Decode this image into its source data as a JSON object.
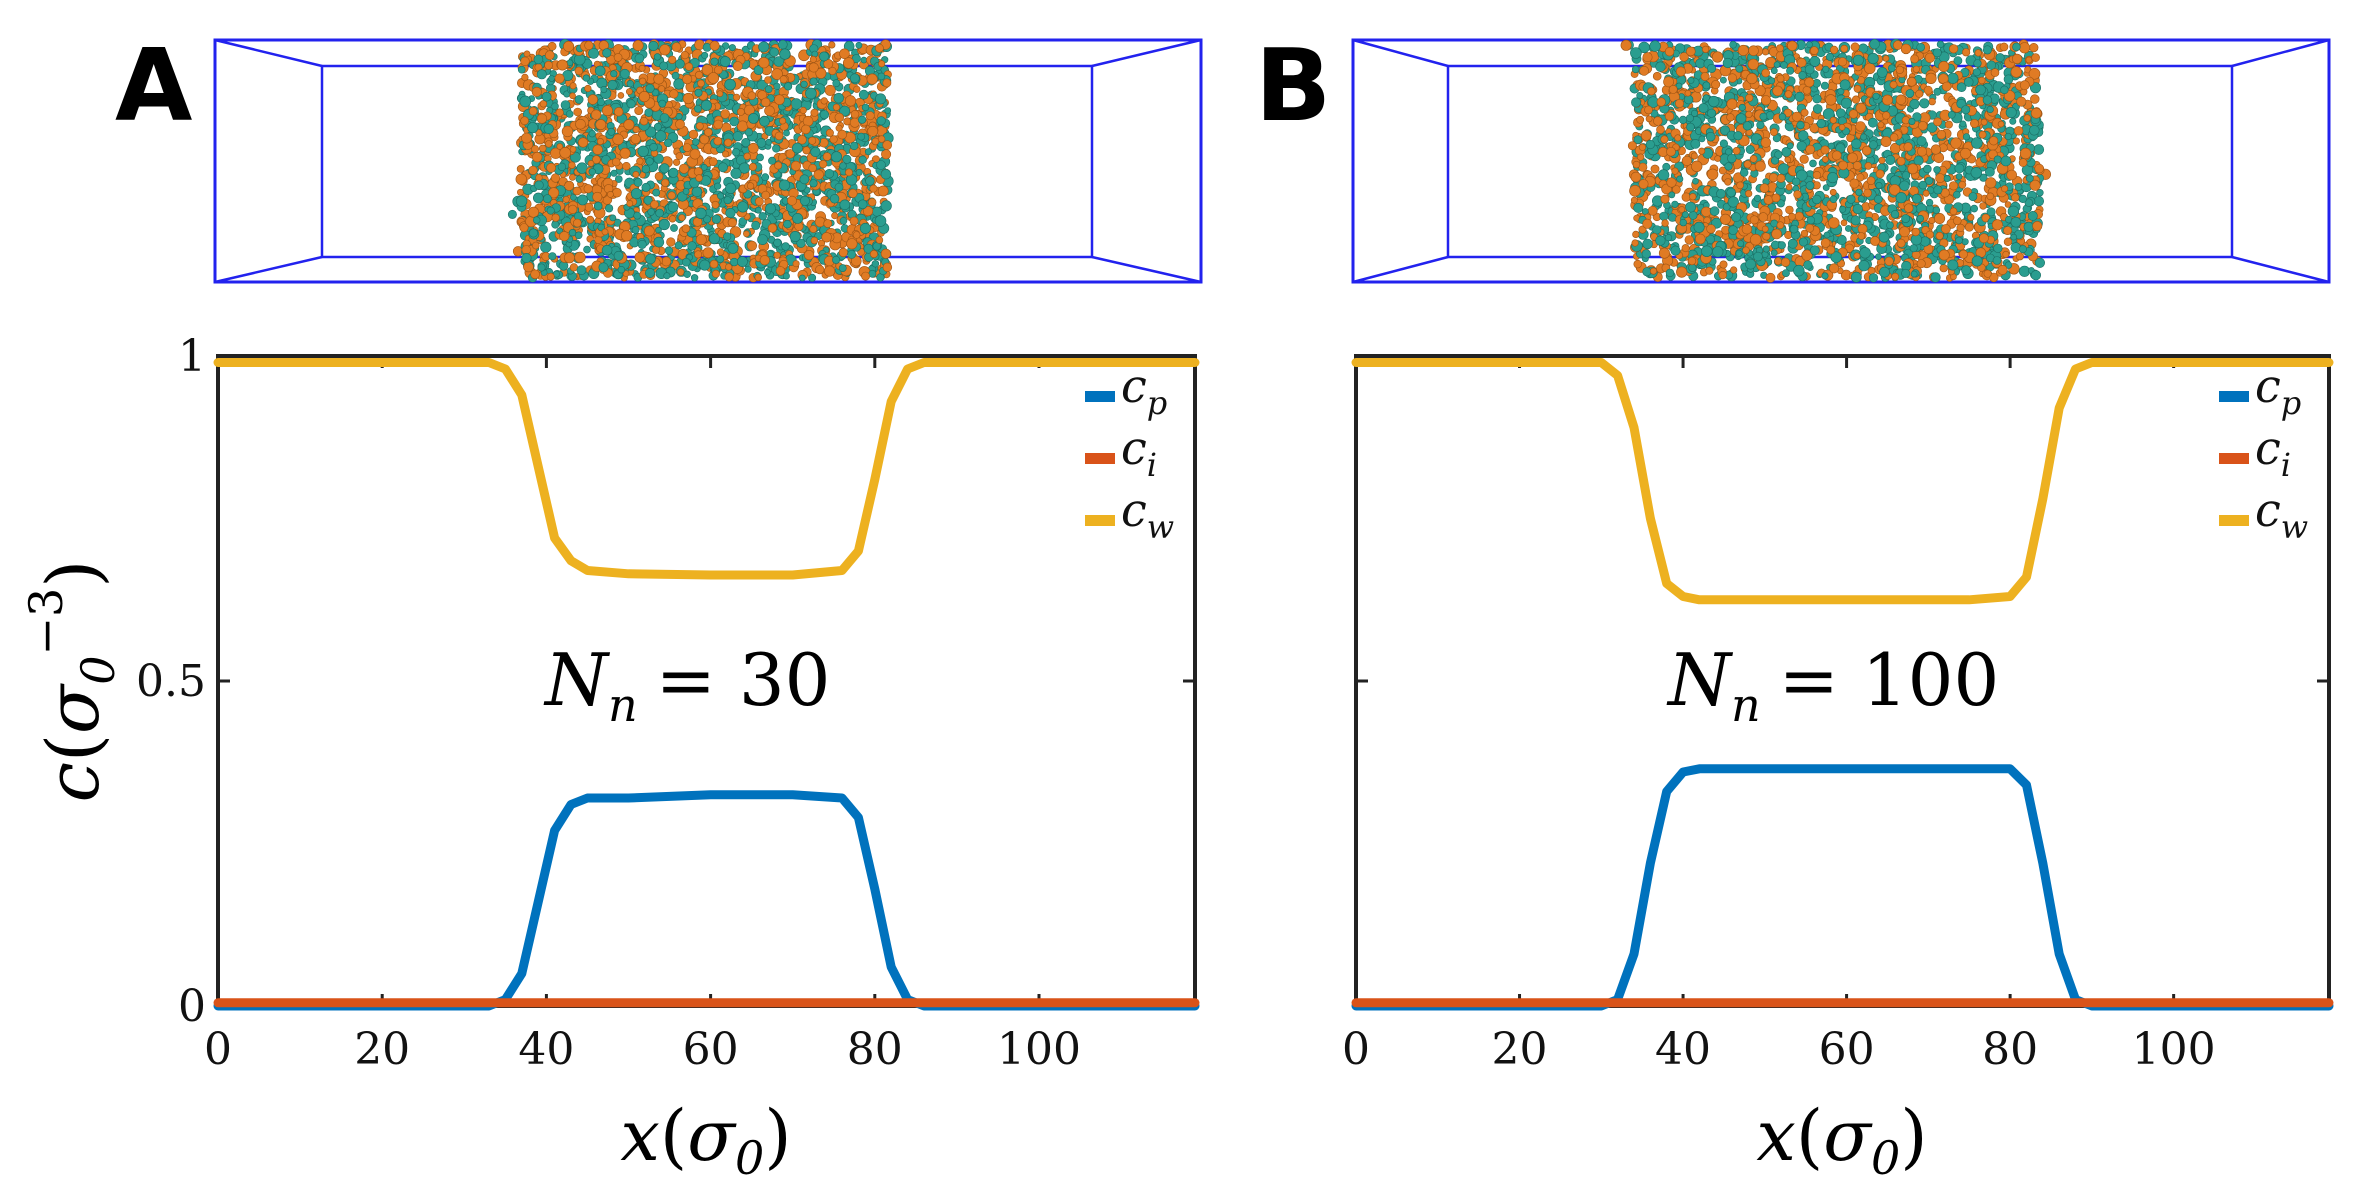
{
  "panels": [
    {
      "letter": "A",
      "annotation_prefix": "N",
      "annotation_sub": "n",
      "annotation_value": "= 30"
    },
    {
      "letter": "B",
      "annotation_prefix": "N",
      "annotation_sub": "n",
      "annotation_value": "= 100"
    }
  ],
  "colors": {
    "c_p": "#0072BD",
    "c_i": "#D95319",
    "c_w": "#EDB120",
    "box": "#2222ee",
    "bead_teal": "#2a9d8f",
    "bead_orange": "#e07b24"
  },
  "chart_data": [
    {
      "type": "line",
      "title": "",
      "xlabel": "x(σ0)",
      "ylabel": "c(σ0^-3)",
      "xlim": [
        0,
        119
      ],
      "ylim": [
        0,
        1
      ],
      "xticks": [
        0,
        20,
        40,
        60,
        80,
        100
      ],
      "yticks": [
        0,
        0.5,
        1
      ],
      "legend_position": "top-right",
      "grid": false,
      "series": [
        {
          "name": "c_p",
          "x": [
            0,
            33,
            35,
            37,
            39,
            41,
            43,
            45,
            50,
            60,
            70,
            76,
            78,
            80,
            82,
            84,
            86,
            119
          ],
          "y": [
            0,
            0,
            0.01,
            0.05,
            0.16,
            0.27,
            0.31,
            0.32,
            0.32,
            0.325,
            0.325,
            0.32,
            0.29,
            0.18,
            0.06,
            0.01,
            0,
            0
          ]
        },
        {
          "name": "c_i",
          "x": [
            0,
            119
          ],
          "y": [
            0.005,
            0.005
          ]
        },
        {
          "name": "c_w",
          "x": [
            0,
            33,
            35,
            37,
            39,
            41,
            43,
            45,
            50,
            60,
            70,
            76,
            78,
            80,
            82,
            84,
            86,
            119
          ],
          "y": [
            0.99,
            0.99,
            0.98,
            0.94,
            0.83,
            0.72,
            0.685,
            0.67,
            0.665,
            0.663,
            0.663,
            0.67,
            0.7,
            0.81,
            0.93,
            0.98,
            0.99,
            0.99
          ]
        }
      ]
    },
    {
      "type": "line",
      "title": "",
      "xlabel": "x(σ0)",
      "ylabel": "",
      "xlim": [
        0,
        119
      ],
      "ylim": [
        0,
        1
      ],
      "xticks": [
        0,
        20,
        40,
        60,
        80,
        100
      ],
      "yticks": [
        0,
        0.5,
        1
      ],
      "legend_position": "top-right",
      "grid": false,
      "series": [
        {
          "name": "c_p",
          "x": [
            0,
            30,
            32,
            34,
            36,
            38,
            40,
            42,
            45,
            60,
            75,
            80,
            82,
            84,
            86,
            88,
            90,
            119
          ],
          "y": [
            0,
            0,
            0.01,
            0.08,
            0.22,
            0.33,
            0.36,
            0.365,
            0.365,
            0.365,
            0.365,
            0.365,
            0.34,
            0.22,
            0.08,
            0.01,
            0,
            0
          ]
        },
        {
          "name": "c_i",
          "x": [
            0,
            119
          ],
          "y": [
            0.005,
            0.005
          ]
        },
        {
          "name": "c_w",
          "x": [
            0,
            30,
            32,
            34,
            36,
            38,
            40,
            42,
            45,
            60,
            75,
            80,
            82,
            84,
            86,
            88,
            90,
            119
          ],
          "y": [
            0.99,
            0.99,
            0.97,
            0.89,
            0.75,
            0.65,
            0.63,
            0.625,
            0.625,
            0.625,
            0.625,
            0.63,
            0.66,
            0.78,
            0.92,
            0.98,
            0.99,
            0.99
          ]
        }
      ]
    }
  ]
}
